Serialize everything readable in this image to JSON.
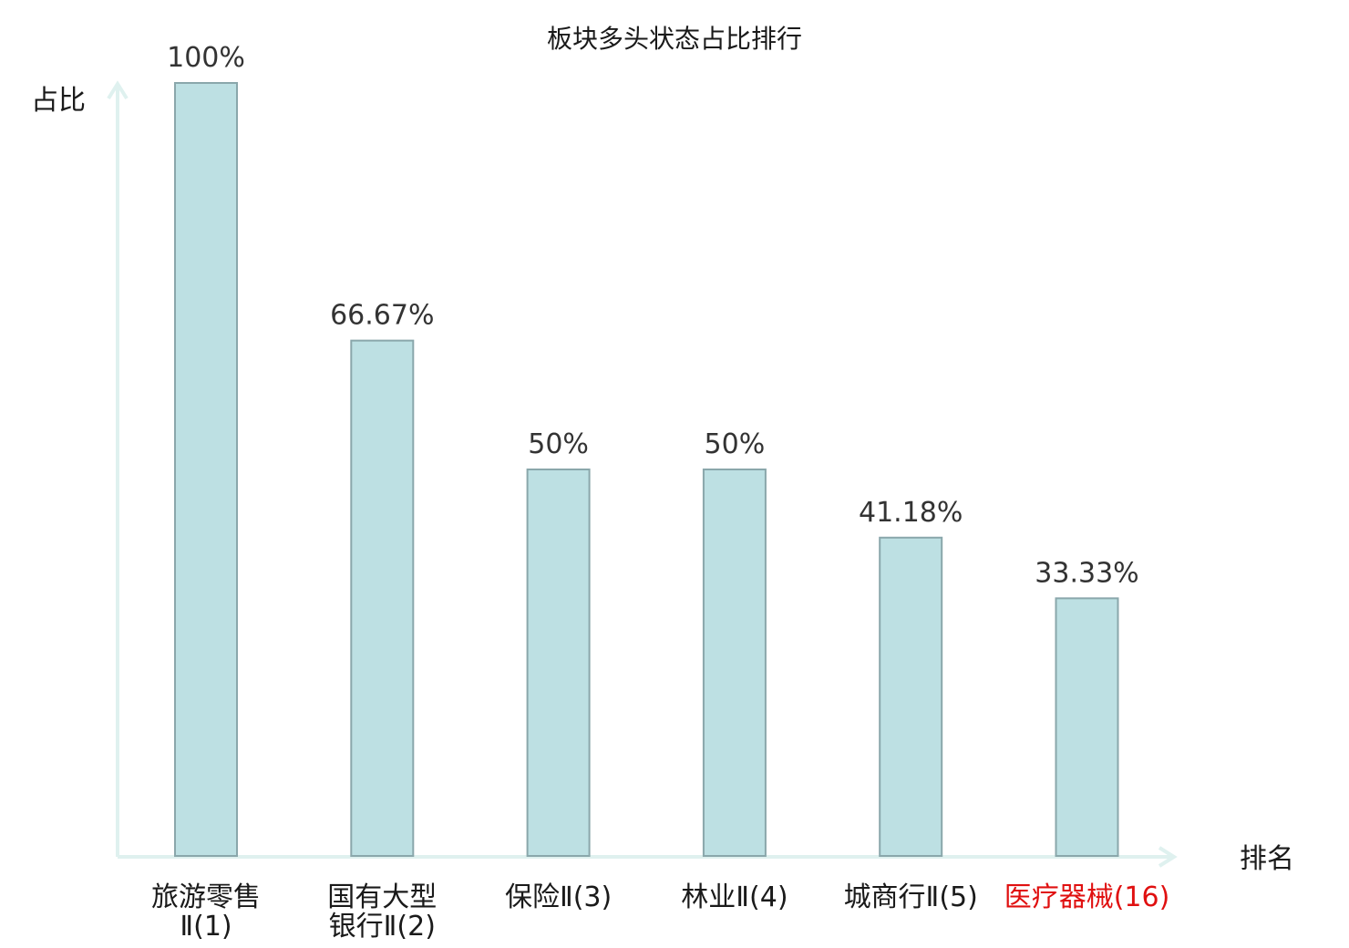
{
  "chart_data": {
    "type": "bar",
    "title": "板块多头状态占比排行",
    "ylabel": "占比",
    "xlabel": "排名",
    "ylim": [
      0,
      100
    ],
    "grid": false,
    "categories": [
      {
        "name": [
          "旅游零售",
          "Ⅱ(1)"
        ],
        "highlight": false
      },
      {
        "name": [
          "国有大型",
          "银行Ⅱ(2)"
        ],
        "highlight": false
      },
      {
        "name": [
          "保险Ⅱ(3)"
        ],
        "highlight": false
      },
      {
        "name": [
          "林业Ⅱ(4)"
        ],
        "highlight": false
      },
      {
        "name": [
          "城商行Ⅱ(5)"
        ],
        "highlight": false
      },
      {
        "name": [
          "医疗器械(16)"
        ],
        "highlight": true
      }
    ],
    "values": [
      100,
      66.67,
      50,
      50,
      41.18,
      33.33
    ],
    "value_labels": [
      "100%",
      "66.67%",
      "50%",
      "50%",
      "41.18%",
      "33.33%"
    ],
    "colors": {
      "bar_fill": "#bde0e3",
      "bar_stroke": "#8aa7ab",
      "axis": "#dff1ef",
      "highlight_label": "#e01010",
      "text": "#1a1a1a"
    }
  }
}
